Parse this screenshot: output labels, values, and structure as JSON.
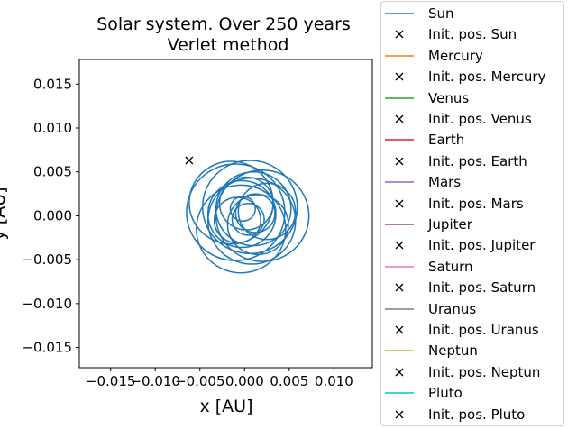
{
  "chart_data": {
    "type": "line",
    "title": "Solar system. Over 250 years",
    "subtitle": "Verlet method",
    "xlabel": "x [AU]",
    "ylabel": "y [AU]",
    "xlim": [
      -0.0185,
      0.0143
    ],
    "ylim": [
      -0.0173,
      0.0178
    ],
    "xticks": [
      -0.015,
      -0.01,
      -0.005,
      0.0,
      0.005,
      0.01
    ],
    "xtick_labels": [
      "−0.015",
      "−0.010",
      "−0.005",
      "0.000",
      "0.005",
      "0.010"
    ],
    "yticks": [
      -0.015,
      -0.01,
      -0.005,
      0.0,
      0.005,
      0.01,
      0.015
    ],
    "ytick_labels": [
      "−0.015",
      "−0.010",
      "−0.005",
      "0.000",
      "0.005",
      "0.010",
      "0.015"
    ],
    "grid": false,
    "legend_position": "outside-right",
    "sun_loops": [
      {
        "cx": -0.001,
        "cy": 0.0004,
        "r": 0.0055
      },
      {
        "cx": 0.0008,
        "cy": -0.0006,
        "r": 0.0049
      },
      {
        "cx": 0.0006,
        "cy": 0.001,
        "r": 0.0053
      },
      {
        "cx": -0.0004,
        "cy": -0.0015,
        "r": 0.005
      },
      {
        "cx": 0.002,
        "cy": 0.0,
        "r": 0.0052
      },
      {
        "cx": -0.0015,
        "cy": 0.0015,
        "r": 0.0047
      },
      {
        "cx": 0.001,
        "cy": 0.0008,
        "r": 0.0042
      },
      {
        "cx": -0.0003,
        "cy": 0.0002,
        "r": 0.0038
      },
      {
        "cx": 0.0015,
        "cy": -0.001,
        "r": 0.0034
      },
      {
        "cx": 0.0002,
        "cy": 0.0014,
        "r": 0.003
      },
      {
        "cx": -0.0008,
        "cy": -0.0005,
        "r": 0.0026
      },
      {
        "cx": 0.0012,
        "cy": 0.0003,
        "r": 0.0022
      },
      {
        "cx": 0.0004,
        "cy": -0.0004,
        "r": 0.0018
      },
      {
        "cx": -0.0002,
        "cy": 0.0008,
        "r": 0.0014
      },
      {
        "cx": 0.0025,
        "cy": 0.0005,
        "r": 0.0032
      }
    ],
    "initial_positions": [
      {
        "name": "Init. pos. Sun",
        "x": -0.0062,
        "y": 0.0063
      }
    ],
    "series": [
      {
        "name": "Sun",
        "color": "#1f77b4"
      },
      {
        "name": "Mercury",
        "color": "#ff7f0e"
      },
      {
        "name": "Venus",
        "color": "#2ca02c"
      },
      {
        "name": "Earth",
        "color": "#d62728"
      },
      {
        "name": "Mars",
        "color": "#9467bd"
      },
      {
        "name": "Jupiter",
        "color": "#8c564b"
      },
      {
        "name": "Saturn",
        "color": "#e377c2"
      },
      {
        "name": "Uranus",
        "color": "#7f7f7f"
      },
      {
        "name": "Neptun",
        "color": "#bcbd22"
      },
      {
        "name": "Pluto",
        "color": "#17becf"
      }
    ],
    "legend_entries": [
      {
        "label": "Sun",
        "kind": "line",
        "color": "#1f77b4"
      },
      {
        "label": "Init. pos. Sun",
        "kind": "marker",
        "color": "#000000"
      },
      {
        "label": "Mercury",
        "kind": "line",
        "color": "#ff7f0e"
      },
      {
        "label": "Init. pos. Mercury",
        "kind": "marker",
        "color": "#000000"
      },
      {
        "label": "Venus",
        "kind": "line",
        "color": "#2ca02c"
      },
      {
        "label": "Init. pos. Venus",
        "kind": "marker",
        "color": "#000000"
      },
      {
        "label": "Earth",
        "kind": "line",
        "color": "#d62728"
      },
      {
        "label": "Init. pos. Earth",
        "kind": "marker",
        "color": "#000000"
      },
      {
        "label": "Mars",
        "kind": "line",
        "color": "#9467bd"
      },
      {
        "label": "Init. pos. Mars",
        "kind": "marker",
        "color": "#000000"
      },
      {
        "label": "Jupiter",
        "kind": "line",
        "color": "#8c564b"
      },
      {
        "label": "Init. pos. Jupiter",
        "kind": "marker",
        "color": "#000000"
      },
      {
        "label": "Saturn",
        "kind": "line",
        "color": "#e377c2"
      },
      {
        "label": "Init. pos. Saturn",
        "kind": "marker",
        "color": "#000000"
      },
      {
        "label": "Uranus",
        "kind": "line",
        "color": "#7f7f7f"
      },
      {
        "label": "Init. pos. Uranus",
        "kind": "marker",
        "color": "#000000"
      },
      {
        "label": "Neptun",
        "kind": "line",
        "color": "#bcbd22"
      },
      {
        "label": "Init. pos. Neptun",
        "kind": "marker",
        "color": "#000000"
      },
      {
        "label": "Pluto",
        "kind": "line",
        "color": "#17becf"
      },
      {
        "label": "Init. pos. Pluto",
        "kind": "marker",
        "color": "#000000"
      }
    ]
  }
}
